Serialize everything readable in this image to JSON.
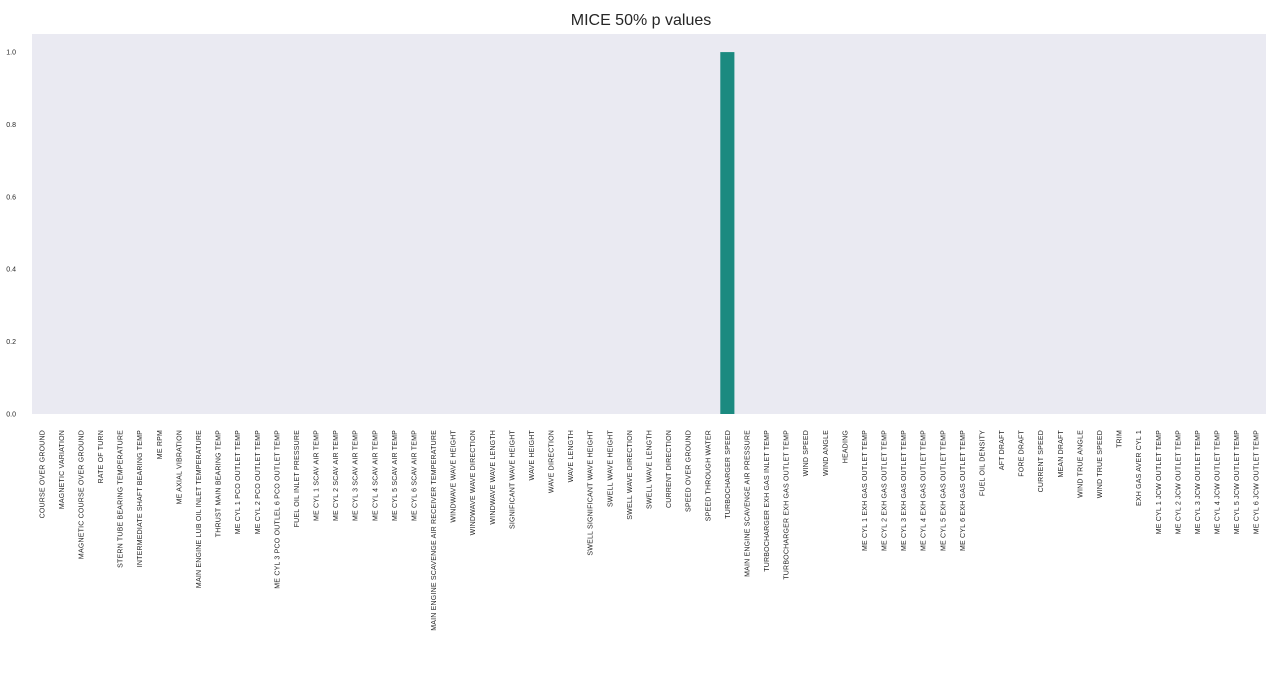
{
  "chart_data": {
    "type": "bar",
    "title": "MICE 50% p values",
    "xlabel": "",
    "ylabel": "",
    "ylim": [
      0,
      1.05
    ],
    "yticks": [
      "0.0",
      "0.2",
      "0.4",
      "0.6",
      "0.8",
      "1.0"
    ],
    "ytick_values": [
      0.0,
      0.2,
      0.4,
      0.6,
      0.8,
      1.0
    ],
    "grid": false,
    "colors": {
      "background": "#eaeaf2",
      "bar": "#1b8a80",
      "text": "#262626"
    },
    "categories": [
      "COURSE OVER GROUND",
      "MAGNETIC VARIATION",
      "MAGNETIC COURSE OVER GROUND",
      "RATE OF TURN",
      "STERN TUBE BEARING TEMPERATURE",
      "INTERMEDIATE SHAFT BEARING TEMP",
      "ME RPM",
      "ME AXIAL VIBRATION",
      "MAIN ENGINE LUB OIL INLET TEMPERATURE",
      "THRUST MAIN BEARING TEMP",
      "ME CYL 1 PCO OUTLET TEMP",
      "ME CYL 2 PCO OUTLET TEMP",
      "ME CYL 3 PCO OUTLEL 6 PCO OUTLET TEMP",
      "FUEL OIL INLET PRESSURE",
      "ME CYL 1 SCAV AIR TEMP",
      "ME CYL 2 SCAV AIR TEMP",
      "ME CYL 3 SCAV AIR TEMP",
      "ME CYL 4 SCAV AIR TEMP",
      "ME CYL 5 SCAV AIR TEMP",
      "ME CYL 6 SCAV AIR TEMP",
      "MAIN ENGINE SCAVENGE AIR RECEIVER TEMPERATURE",
      "WINDWAVE WAVE HEIGHT",
      "WINDWAVE WAVE DIRECTION",
      "WINDWAVE WAVE LENGTH",
      "SIGNIFICANT WAVE HEIGHT",
      "WAVE HEIGHT",
      "WAVE DIRECTION",
      "WAVE LENGTH",
      "SWELL SIGNIFICANT WAVE HEIGHT",
      "SWELL WAVE HEIGHT",
      "SWELL WAVE DIRECTION",
      "SWELL WAVE LENGTH",
      "CURRENT DIRECTION",
      "SPEED OVER GROUND",
      "SPEED THROUGH WATER",
      "TURBOCHARGER SPEED",
      "MAIN ENGINE  SCAVENGE AIR PRESSURE",
      "TURBOCHARGER EXH GAS INLET TEMP",
      "TURBOCHARGER EXH GAS OUTLET TEMP",
      "WIND SPEED",
      "WIND ANGLE",
      "HEADING",
      "ME CYL 1 EXH GAS OUTLET TEMP",
      "ME CYL 2 EXH GAS OUTLET TEMP",
      "ME CYL 3 EXH GAS OUTLET TEMP",
      "ME CYL 4 EXH GAS OUTLET TEMP",
      "ME CYL 5 EXH GAS OUTLET TEMP",
      "ME CYL 6 EXH GAS OUTLET TEMP",
      "FUEL OIL DENSITY",
      "AFT DRAFT",
      "FORE DRAFT",
      "CURRENT SPEED",
      "MEAN DRAFT",
      "WIND TRUE ANGLE",
      "WIND TRUE SPEED",
      "TRIM",
      "EXH GAS AVER CYL 1",
      "ME CYL 1 JCW OUTLET TEMP",
      "ME CYL 2 JCW OUTLET TEMP",
      "ME CYL 3 JCW OUTLET TEMP",
      "ME CYL 4 JCW OUTLET TEMP",
      "ME CYL 5 JCW OUTLET TEMP",
      "ME CYL 6 JCW OUTLET TEMP"
    ],
    "values": [
      0,
      0,
      0,
      0,
      0,
      0,
      0,
      0,
      0,
      0,
      0,
      0,
      0,
      0,
      0,
      0,
      0,
      0,
      0,
      0,
      0,
      0,
      0,
      0,
      0,
      0,
      0,
      0,
      0,
      0,
      0,
      0,
      0,
      0,
      0,
      1.0,
      0,
      0,
      0,
      0,
      0,
      0,
      0,
      0,
      0,
      0,
      0,
      0,
      0,
      0,
      0,
      0,
      0,
      0,
      0,
      0,
      0,
      0,
      0,
      0,
      0,
      0,
      0
    ]
  }
}
